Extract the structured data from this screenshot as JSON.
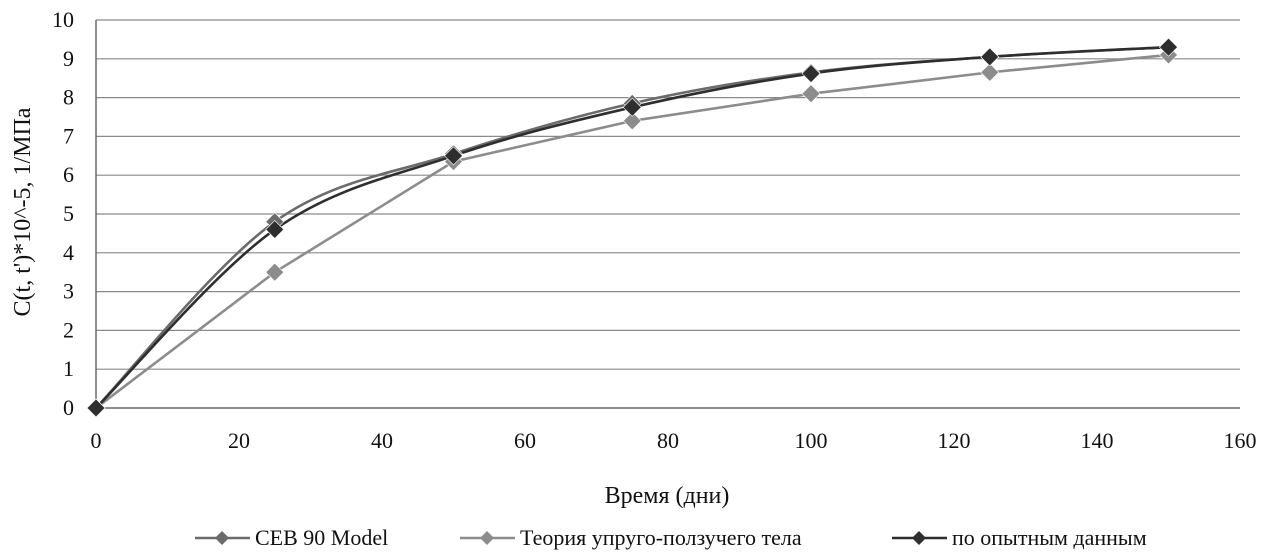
{
  "chart_data": {
    "type": "line",
    "title": "",
    "xlabel": "Время (дни)",
    "ylabel": "C(t, t')*10^-5, 1/МПа",
    "xlim": [
      0,
      160
    ],
    "ylim": [
      0,
      10
    ],
    "xticks": [
      "0",
      "20",
      "40",
      "60",
      "80",
      "100",
      "120",
      "140",
      "160"
    ],
    "yticks": [
      "0",
      "1",
      "2",
      "3",
      "4",
      "5",
      "6",
      "7",
      "8",
      "9",
      "10"
    ],
    "grid": "horizontal",
    "legend_position": "bottom",
    "series": [
      {
        "name": "CEB 90 Model",
        "color": "#6b6b6b",
        "marker": "diamond",
        "smooth": true,
        "x": [
          0,
          25,
          50,
          75,
          100,
          125,
          150
        ],
        "y": [
          0,
          4.8,
          6.55,
          7.85,
          8.65,
          9.05,
          9.3
        ]
      },
      {
        "name": "Теория упруго-ползучего тела",
        "color": "#8c8c8c",
        "marker": "diamond",
        "smooth": false,
        "x": [
          0,
          25,
          50,
          75,
          100,
          125,
          150
        ],
        "y": [
          0,
          3.5,
          6.35,
          7.4,
          8.1,
          8.65,
          9.1
        ]
      },
      {
        "name": "по опытным данным",
        "color": "#2e2e2e",
        "marker": "diamond",
        "smooth": true,
        "x": [
          0,
          25,
          50,
          75,
          100,
          125,
          150
        ],
        "y": [
          0,
          4.6,
          6.5,
          7.75,
          8.62,
          9.05,
          9.3
        ]
      }
    ]
  }
}
